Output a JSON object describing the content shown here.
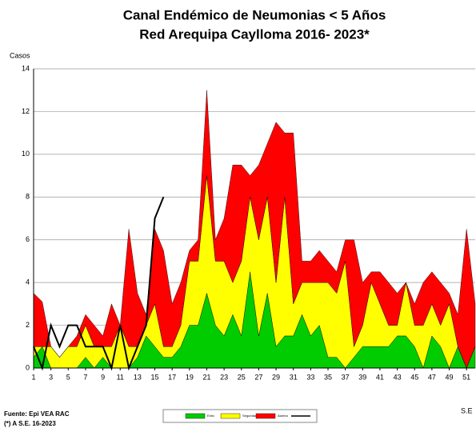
{
  "chart_data": {
    "type": "stacked_area",
    "title": "Canal Endémico de Neumonias < 5 Años",
    "subtitle": "Red Arequipa Caylloma 2016- 2023*",
    "y_label": "Casos",
    "x_label": "S.E",
    "notes": [
      "Fuente: Epi VEA RAC",
      "(*) A S.E. 16-2023"
    ],
    "x": [
      1,
      2,
      3,
      4,
      5,
      6,
      7,
      8,
      9,
      10,
      11,
      12,
      13,
      14,
      15,
      16,
      17,
      18,
      19,
      20,
      21,
      22,
      23,
      24,
      25,
      26,
      27,
      28,
      29,
      30,
      31,
      32,
      33,
      34,
      35,
      36,
      37,
      38,
      39,
      40,
      41,
      42,
      43,
      44,
      45,
      46,
      47,
      48,
      49,
      50,
      51,
      52
    ],
    "xlim": [
      1,
      52
    ],
    "xticks": [
      1,
      3,
      5,
      7,
      9,
      11,
      13,
      15,
      17,
      19,
      21,
      23,
      25,
      27,
      29,
      31,
      33,
      35,
      37,
      39,
      41,
      43,
      45,
      47,
      49,
      51
    ],
    "ylim": [
      0,
      14
    ],
    "yticks": [
      0,
      2,
      4,
      6,
      8,
      10,
      12,
      14
    ],
    "grid": true,
    "series": [
      {
        "name": "Exito",
        "color": "#00cc00",
        "stack": true,
        "values": [
          0.5,
          1,
          0,
          0,
          0,
          0,
          0.5,
          0,
          0.5,
          0,
          0,
          0,
          0.5,
          1.5,
          1,
          0.5,
          0.5,
          1,
          2,
          2,
          3.5,
          2,
          1.5,
          2.5,
          1.5,
          4.5,
          1.5,
          3.5,
          1,
          1.5,
          1.5,
          2.5,
          1.5,
          2,
          0.5,
          0.5,
          0,
          0.5,
          1,
          1,
          1,
          1,
          1.5,
          1.5,
          1,
          0,
          1.5,
          1,
          0,
          1,
          0,
          1
        ]
      },
      {
        "name": "Seguridad",
        "color": "#ffff00",
        "stack": true,
        "values": [
          0.5,
          0,
          1,
          0.5,
          1,
          1,
          1.5,
          1,
          0.5,
          1,
          2,
          1,
          0.5,
          0.5,
          2,
          0.5,
          0.5,
          1,
          3,
          3,
          5.5,
          3,
          3.5,
          1.5,
          3.5,
          3.5,
          4.5,
          4.5,
          3,
          6.5,
          1.5,
          1.5,
          2.5,
          2,
          3.5,
          3,
          5,
          0.5,
          1,
          3,
          2,
          1,
          0.5,
          2.5,
          1,
          2,
          1.5,
          1,
          3,
          0,
          0,
          0
        ]
      },
      {
        "name": "Alarma",
        "color": "#ff0000",
        "stack": true,
        "values": [
          2.5,
          2.1,
          0,
          0,
          0,
          0.5,
          0.5,
          1,
          0.5,
          2,
          0,
          5.5,
          2.5,
          0.5,
          3.5,
          4.5,
          2,
          2,
          0.5,
          1,
          4,
          1,
          2,
          5.5,
          4.5,
          1,
          3.5,
          2.5,
          7.5,
          3,
          8,
          1,
          1,
          1.5,
          1,
          1,
          1,
          5,
          2,
          0.5,
          1.5,
          2,
          1.5,
          0,
          1,
          2,
          1.5,
          2,
          0.5,
          1.5,
          6.5,
          2
        ]
      },
      {
        "name": null,
        "color": "#000000",
        "stack": false,
        "values": [
          1,
          0,
          2,
          1,
          2,
          2,
          1,
          1,
          1,
          0,
          2,
          0,
          1,
          2,
          7,
          8,
          null,
          null,
          null,
          null,
          null,
          null,
          null,
          null,
          null,
          null,
          null,
          null,
          null,
          null,
          null,
          null,
          null,
          null,
          null,
          null,
          null,
          null,
          null,
          null,
          null,
          null,
          null,
          null,
          null,
          null,
          null,
          null,
          null,
          null,
          null,
          null
        ]
      }
    ]
  }
}
